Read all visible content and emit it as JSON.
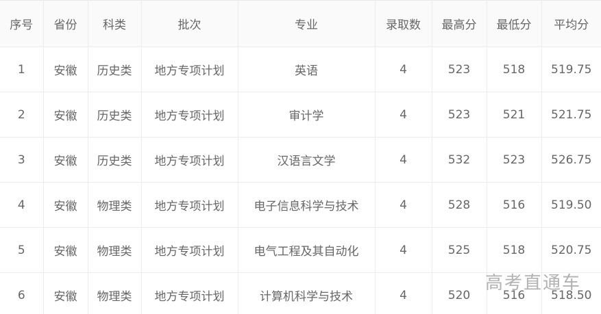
{
  "chart_data": {
    "type": "table",
    "title": "",
    "columns": [
      {
        "key": "index",
        "label": "序号"
      },
      {
        "key": "province",
        "label": "省份"
      },
      {
        "key": "category",
        "label": "科类"
      },
      {
        "key": "batch",
        "label": "批次"
      },
      {
        "key": "major",
        "label": "专业"
      },
      {
        "key": "admitted",
        "label": "录取数"
      },
      {
        "key": "max_score",
        "label": "最高分"
      },
      {
        "key": "min_score",
        "label": "最低分"
      },
      {
        "key": "avg_score",
        "label": "平均分"
      }
    ],
    "rows": [
      [
        "1",
        "安徽",
        "历史类",
        "地方专项计划",
        "英语",
        "4",
        "523",
        "518",
        "519.75"
      ],
      [
        "2",
        "安徽",
        "历史类",
        "地方专项计划",
        "审计学",
        "4",
        "523",
        "521",
        "521.75"
      ],
      [
        "3",
        "安徽",
        "历史类",
        "地方专项计划",
        "汉语言文学",
        "4",
        "532",
        "523",
        "526.75"
      ],
      [
        "4",
        "安徽",
        "物理类",
        "地方专项计划",
        "电子信息科学与技术",
        "4",
        "528",
        "516",
        "519.50"
      ],
      [
        "5",
        "安徽",
        "物理类",
        "地方专项计划",
        "电气工程及其自动化",
        "4",
        "525",
        "518",
        "520.75"
      ],
      [
        "6",
        "安徽",
        "物理类",
        "地方专项计划",
        "计算机科学与技术",
        "4",
        "520",
        "516",
        "518.50"
      ]
    ]
  },
  "watermark": {
    "text": "高考直通车"
  },
  "colors": {
    "border": "#ececec",
    "header_bg": "#fafafa",
    "text": "#666666",
    "watermark": "#a0a0a0"
  }
}
